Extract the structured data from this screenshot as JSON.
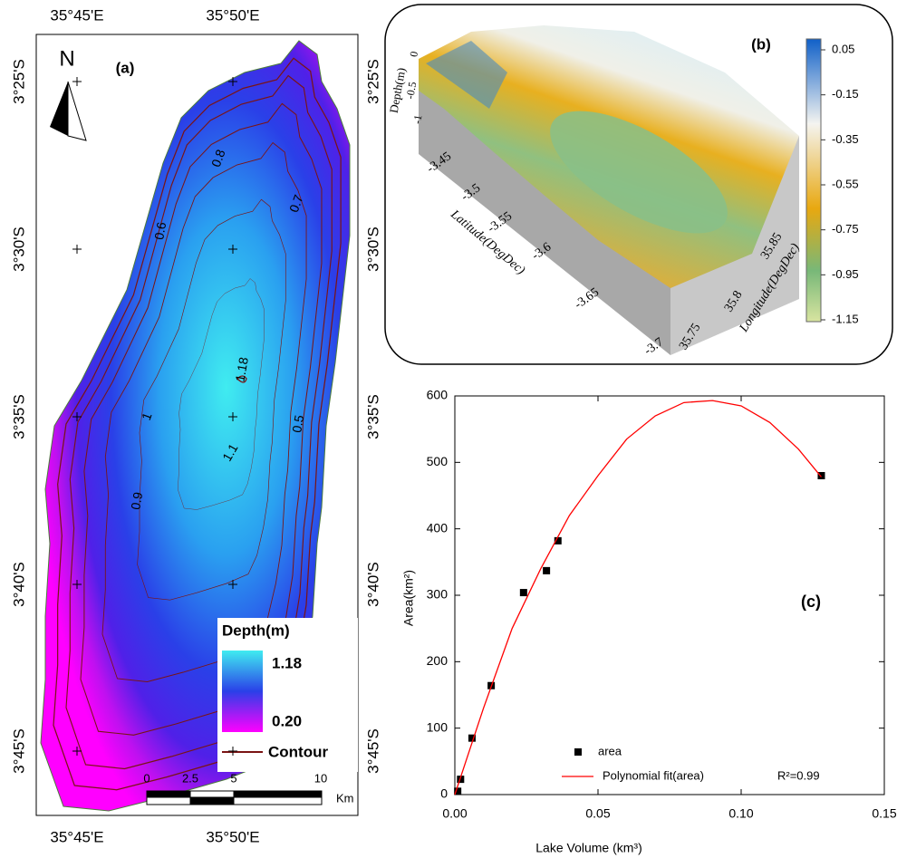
{
  "map": {
    "label": "(a)",
    "north": "N",
    "lon_labels": [
      "35°45'E",
      "35°50'E"
    ],
    "lat_labels": [
      "3°25'S",
      "3°30'S",
      "3°35'S",
      "3°40'S",
      "3°45'S"
    ],
    "contour_labels": [
      "0.8",
      "0.7",
      "0.6",
      "1.18",
      "1",
      "0.5",
      "1.1",
      "0.9"
    ],
    "legend": {
      "title": "Depth(m)",
      "max": "1.18",
      "min": "0.20",
      "contour": "Contour"
    },
    "scale": {
      "labels": [
        "0",
        "2.5",
        "5",
        "10"
      ],
      "unit": "Km"
    }
  },
  "surface": {
    "label": "(b)",
    "depth_label": "Depth(m)",
    "latitude_label": "Latitude(DegDec)",
    "longitude_label": "Longitude(DegDec)",
    "depth_ticks": [
      0,
      -0.5,
      -1
    ],
    "latitude_ticks": [
      -3.45,
      -3.5,
      -3.55,
      -3.6,
      -3.65,
      -3.7
    ],
    "longitude_ticks": [
      35.75,
      35.8,
      35.85
    ],
    "colorbar_ticks": [
      0.05,
      -0.15,
      -0.35,
      -0.55,
      -0.75,
      -0.95,
      -1.15
    ]
  },
  "chart_data": {
    "type": "scatter",
    "label": "(c)",
    "xlabel": "Lake Volume (km³)",
    "ylabel": "Area(km²)",
    "xlim": [
      0,
      0.15
    ],
    "ylim": [
      0,
      600
    ],
    "xticks": [
      {
        "value": 0,
        "label": "0.00"
      },
      {
        "value": 0.05,
        "label": "0.05"
      },
      {
        "value": 0.1,
        "label": "0.10"
      },
      {
        "value": 0.15,
        "label": "0.15"
      }
    ],
    "yticks": [
      0,
      100,
      200,
      300,
      400,
      500,
      600
    ],
    "series": [
      {
        "name": "area",
        "color": "#000000",
        "kind": "points",
        "x": [
          0.001,
          0.002,
          0.006,
          0.0127,
          0.024,
          0.032,
          0.036,
          0.128
        ],
        "values": [
          5,
          23,
          85,
          164,
          304,
          337,
          382,
          480
        ]
      },
      {
        "name": "Polynomial fit(area)",
        "color": "#ff0000",
        "kind": "line",
        "x": [
          0,
          0.01,
          0.02,
          0.03,
          0.04,
          0.05,
          0.06,
          0.07,
          0.08,
          0.09,
          0.1,
          0.11,
          0.12,
          0.128
        ],
        "values": [
          0,
          130,
          250,
          340,
          420,
          480,
          535,
          570,
          590,
          593,
          585,
          560,
          520,
          478
        ]
      }
    ],
    "annotation": "R²=0.99"
  }
}
